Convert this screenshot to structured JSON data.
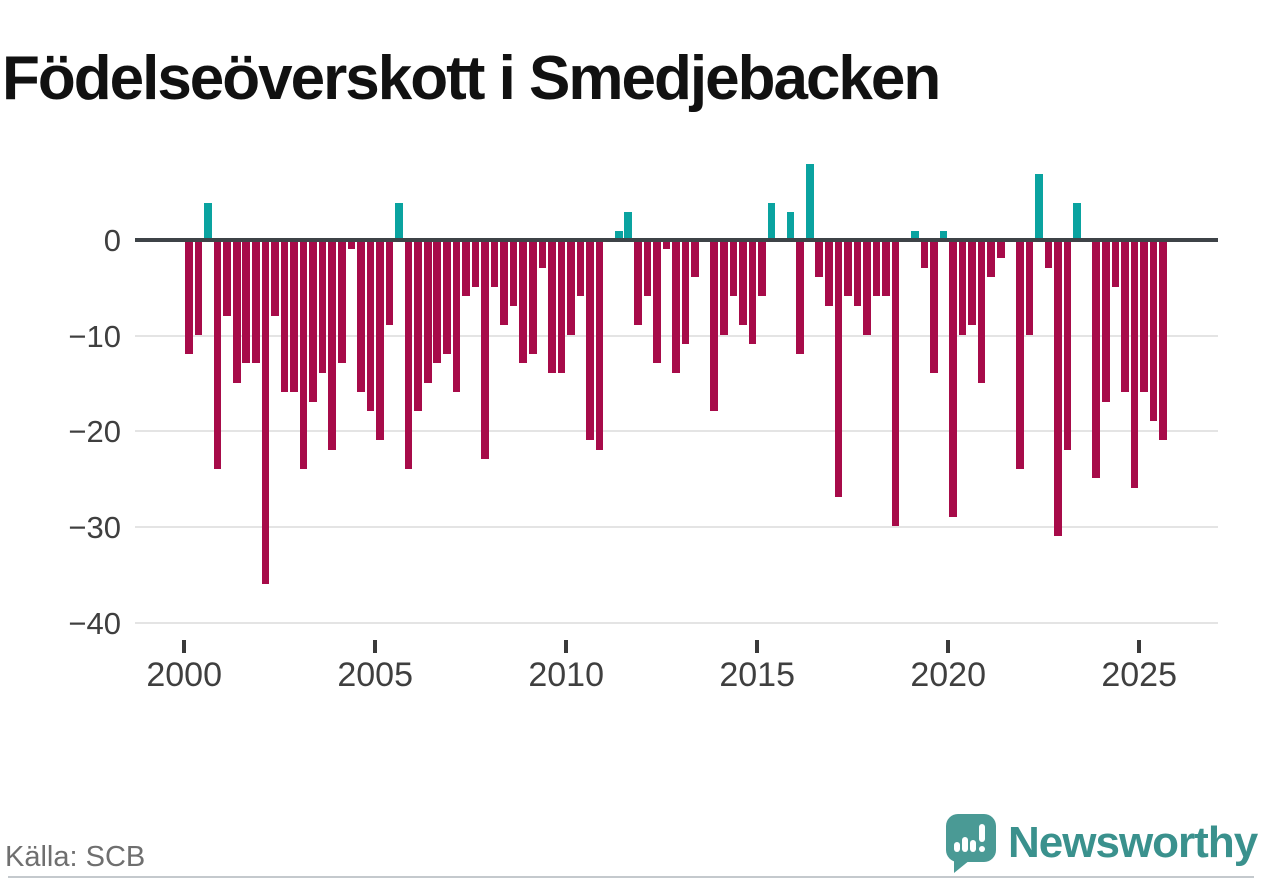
{
  "title": "Födelseöverskott i Smedjebacken",
  "source": "Källa: SCB",
  "branding": {
    "logo_text": "Newsworthy"
  },
  "colors": {
    "negative_bar": "#a70b49",
    "positive_bar": "#0aa3a0",
    "zero_line": "#3e4347",
    "gridline": "#e4e4e4",
    "logo_teal": "#4a9a95",
    "logo_text_teal": "#3a918d",
    "axis_text": "#3f3f3f",
    "source_text": "#6f6f6f",
    "title_text": "#111111"
  },
  "y_axis": {
    "ticks": [
      {
        "value": 0,
        "label": "0"
      },
      {
        "value": -10,
        "label": "−10"
      },
      {
        "value": -20,
        "label": "−20"
      },
      {
        "value": -30,
        "label": "−30"
      },
      {
        "value": -40,
        "label": "−40"
      }
    ]
  },
  "x_axis": {
    "ticks": [
      {
        "value": 2000,
        "label": "2000"
      },
      {
        "value": 2005,
        "label": "2005"
      },
      {
        "value": 2010,
        "label": "2010"
      },
      {
        "value": 2015,
        "label": "2015"
      },
      {
        "value": 2020,
        "label": "2020"
      },
      {
        "value": 2025,
        "label": "2025"
      }
    ]
  },
  "chart_data": {
    "type": "bar",
    "title": "Födelseöverskott i Smedjebacken",
    "xlabel": "",
    "ylabel": "",
    "ylim": [
      -40,
      10
    ],
    "grid": true,
    "legend": "none",
    "x_unit": "quarter",
    "x": [
      "2000Q1",
      "2000Q2",
      "2000Q3",
      "2000Q4",
      "2001Q1",
      "2001Q2",
      "2001Q3",
      "2001Q4",
      "2002Q1",
      "2002Q2",
      "2002Q3",
      "2002Q4",
      "2003Q1",
      "2003Q2",
      "2003Q3",
      "2003Q4",
      "2004Q1",
      "2004Q2",
      "2004Q3",
      "2004Q4",
      "2005Q1",
      "2005Q2",
      "2005Q3",
      "2005Q4",
      "2006Q1",
      "2006Q2",
      "2006Q3",
      "2006Q4",
      "2007Q1",
      "2007Q2",
      "2007Q3",
      "2007Q4",
      "2008Q1",
      "2008Q2",
      "2008Q3",
      "2008Q4",
      "2009Q1",
      "2009Q2",
      "2009Q3",
      "2009Q4",
      "2010Q1",
      "2010Q2",
      "2010Q3",
      "2010Q4",
      "2011Q1",
      "2011Q2",
      "2011Q3",
      "2011Q4",
      "2012Q1",
      "2012Q2",
      "2012Q3",
      "2012Q4",
      "2013Q1",
      "2013Q2",
      "2013Q3",
      "2013Q4",
      "2014Q1",
      "2014Q2",
      "2014Q3",
      "2014Q4",
      "2015Q1",
      "2015Q2",
      "2015Q3",
      "2015Q4",
      "2016Q1",
      "2016Q2",
      "2016Q3",
      "2016Q4",
      "2017Q1",
      "2017Q2",
      "2017Q3",
      "2017Q4",
      "2018Q1",
      "2018Q2",
      "2018Q3",
      "2018Q4",
      "2019Q1",
      "2019Q2",
      "2019Q3",
      "2019Q4",
      "2020Q1",
      "2020Q2",
      "2020Q3",
      "2020Q4",
      "2021Q1",
      "2021Q2",
      "2021Q3",
      "2021Q4",
      "2022Q1",
      "2022Q2",
      "2022Q3",
      "2022Q4",
      "2023Q1",
      "2023Q2",
      "2023Q3",
      "2023Q4",
      "2024Q1",
      "2024Q2",
      "2024Q3",
      "2024Q4",
      "2025Q1",
      "2025Q2",
      "2025Q3"
    ],
    "values": [
      -12,
      -10,
      4,
      -24,
      -8,
      -15,
      -13,
      -13,
      -36,
      -8,
      -16,
      -16,
      -24,
      -17,
      -14,
      -22,
      -13,
      -1,
      -16,
      -18,
      -21,
      -9,
      4,
      -24,
      -18,
      -15,
      -13,
      -12,
      -16,
      -6,
      -5,
      -23,
      -5,
      -9,
      -7,
      -13,
      -12,
      -3,
      -14,
      -14,
      -10,
      -6,
      -21,
      -22,
      0,
      1,
      3,
      -9,
      -6,
      -13,
      -1,
      -14,
      -11,
      -4,
      0,
      -18,
      -10,
      -6,
      -9,
      -11,
      -6,
      4,
      0,
      3,
      -12,
      8,
      -4,
      -7,
      -27,
      -6,
      -7,
      -10,
      -6,
      -6,
      -30,
      0,
      1,
      -3,
      -14,
      1,
      -29,
      -10,
      -9,
      -15,
      -4,
      -2,
      0,
      -24,
      -10,
      7,
      -3,
      -31,
      -22,
      4,
      0,
      -25,
      -17,
      -5,
      -16,
      -26,
      -16,
      -19,
      -21
    ]
  }
}
